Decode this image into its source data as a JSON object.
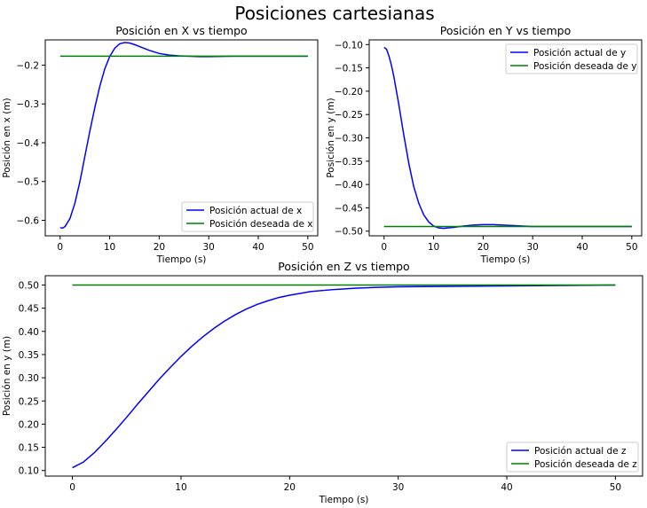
{
  "figure": {
    "title": "Posiciones cartesianas"
  },
  "chart_data": [
    {
      "type": "line",
      "title": "Posición en X vs tiempo",
      "xlabel": "Tiempo (s)",
      "ylabel": "Posición en x (m)",
      "xlim": [
        -3,
        52
      ],
      "ylim": [
        -0.64,
        -0.135
      ],
      "xticks": [
        0,
        10,
        20,
        30,
        40,
        50
      ],
      "xtick_labels": [
        "0",
        "10",
        "20",
        "30",
        "40",
        "50"
      ],
      "yticks": [
        -0.6,
        -0.5,
        -0.4,
        -0.3,
        -0.2
      ],
      "ytick_labels": [
        "−0.6",
        "−0.5",
        "−0.4",
        "−0.3",
        "−0.2"
      ],
      "legend_position": "lower-right",
      "series": [
        {
          "name": "Posición actual de x",
          "color": "#0000ff",
          "x": [
            0,
            0.5,
            1,
            2,
            3,
            4,
            5,
            6,
            7,
            8,
            9,
            10,
            11,
            12,
            13,
            14,
            15,
            16,
            18,
            20,
            22,
            24,
            26,
            28,
            30,
            35,
            40,
            45,
            50
          ],
          "y": [
            -0.619,
            -0.62,
            -0.616,
            -0.595,
            -0.555,
            -0.5,
            -0.435,
            -0.37,
            -0.31,
            -0.255,
            -0.21,
            -0.178,
            -0.157,
            -0.145,
            -0.142,
            -0.143,
            -0.147,
            -0.152,
            -0.162,
            -0.17,
            -0.174,
            -0.176,
            -0.177,
            -0.178,
            -0.178,
            -0.177,
            -0.177,
            -0.177,
            -0.177
          ]
        },
        {
          "name": "Posición deseada de x",
          "color": "#008000",
          "x": [
            0,
            50
          ],
          "y": [
            -0.177,
            -0.177
          ]
        }
      ]
    },
    {
      "type": "line",
      "title": "Posición en Y vs tiempo",
      "xlabel": "Tiempo (s)",
      "ylabel": "Posición en y (m)",
      "xlim": [
        -3,
        52
      ],
      "ylim": [
        -0.51,
        -0.09
      ],
      "xticks": [
        0,
        10,
        20,
        30,
        40,
        50
      ],
      "xtick_labels": [
        "0",
        "10",
        "20",
        "30",
        "40",
        "50"
      ],
      "yticks": [
        -0.1,
        -0.15,
        -0.2,
        -0.25,
        -0.3,
        -0.35,
        -0.4,
        -0.45,
        -0.5
      ],
      "ytick_labels": [
        "−0.10",
        "−0.15",
        "−0.20",
        "−0.25",
        "−0.30",
        "−0.35",
        "−0.40",
        "−0.45",
        "−0.50"
      ],
      "legend_position": "upper-right",
      "series": [
        {
          "name": "Posición actual de y",
          "color": "#0000ff",
          "x": [
            0,
            0.5,
            1,
            1.5,
            2,
            3,
            4,
            5,
            6,
            7,
            8,
            9,
            10,
            11,
            12,
            13,
            14,
            16,
            18,
            20,
            22,
            24,
            26,
            28,
            30,
            35,
            40,
            45,
            50
          ],
          "y": [
            -0.106,
            -0.11,
            -0.125,
            -0.145,
            -0.17,
            -0.23,
            -0.295,
            -0.355,
            -0.405,
            -0.44,
            -0.465,
            -0.48,
            -0.489,
            -0.493,
            -0.494,
            -0.493,
            -0.492,
            -0.489,
            -0.487,
            -0.486,
            -0.486,
            -0.487,
            -0.488,
            -0.489,
            -0.49,
            -0.49,
            -0.49,
            -0.49,
            -0.49
          ]
        },
        {
          "name": "Posición deseada de y",
          "color": "#008000",
          "x": [
            0,
            50
          ],
          "y": [
            -0.49,
            -0.49
          ]
        }
      ]
    },
    {
      "type": "line",
      "title": "Posición en Z vs tiempo",
      "xlabel": "Tiempo (s)",
      "ylabel": "Posición en y (m)",
      "xlim": [
        -2.5,
        52.5
      ],
      "ylim": [
        0.088,
        0.52
      ],
      "xticks": [
        0,
        10,
        20,
        30,
        40,
        50
      ],
      "xtick_labels": [
        "0",
        "10",
        "20",
        "30",
        "40",
        "50"
      ],
      "yticks": [
        0.1,
        0.15,
        0.2,
        0.25,
        0.3,
        0.35,
        0.4,
        0.45,
        0.5
      ],
      "ytick_labels": [
        "0.10",
        "0.15",
        "0.20",
        "0.25",
        "0.30",
        "0.35",
        "0.40",
        "0.45",
        "0.50"
      ],
      "legend_position": "lower-right",
      "series": [
        {
          "name": "Posición actual de z",
          "color": "#0000ff",
          "x": [
            0,
            1,
            2,
            3,
            4,
            5,
            6,
            7,
            8,
            9,
            10,
            11,
            12,
            13,
            14,
            15,
            16,
            17,
            18,
            19,
            20,
            22,
            24,
            26,
            28,
            30,
            35,
            40,
            45,
            50
          ],
          "y": [
            0.106,
            0.118,
            0.138,
            0.162,
            0.188,
            0.215,
            0.243,
            0.27,
            0.297,
            0.322,
            0.346,
            0.368,
            0.388,
            0.406,
            0.422,
            0.436,
            0.448,
            0.458,
            0.466,
            0.473,
            0.478,
            0.486,
            0.49,
            0.493,
            0.495,
            0.496,
            0.497,
            0.498,
            0.499,
            0.5
          ]
        },
        {
          "name": "Posición deseada de z",
          "color": "#008000",
          "x": [
            0,
            50
          ],
          "y": [
            0.5,
            0.5
          ]
        }
      ]
    }
  ]
}
